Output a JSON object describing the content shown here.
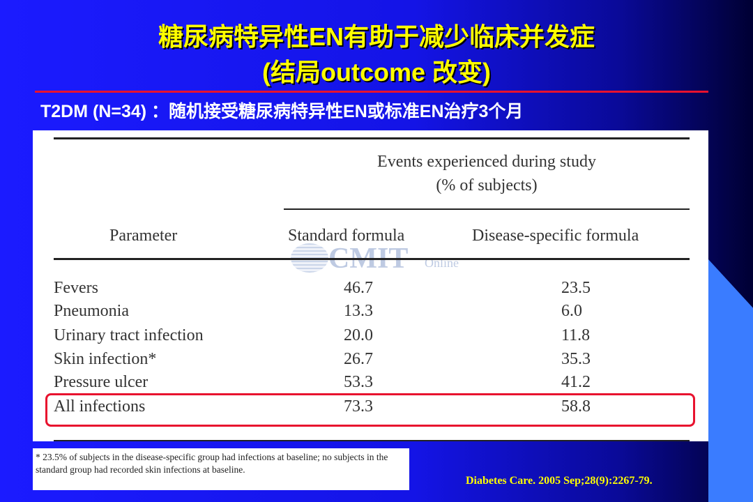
{
  "slide": {
    "title_line1": "糖尿病特异性EN有助于减少临床并发症",
    "title_line2": "(结局outcome 改变)",
    "subtitle": "T2DM (N=34) ：随机接受糖尿病特异性EN或标准EN治疗3个月",
    "citation": "Diabetes Care. 2005 Sep;28(9):2267-79."
  },
  "table": {
    "events_header": "Events experienced during study",
    "events_subheader": "(% of subjects)",
    "columns": [
      "Parameter",
      "Standard formula",
      "Disease-specific formula"
    ],
    "rows": [
      {
        "parameter": "Fevers",
        "standard": "46.7",
        "disease_specific": "23.5"
      },
      {
        "parameter": "Pneumonia",
        "standard": "13.3",
        "disease_specific": "6.0"
      },
      {
        "parameter": "Urinary tract infection",
        "standard": "20.0",
        "disease_specific": "11.8"
      },
      {
        "parameter": "Skin infection*",
        "standard": "26.7",
        "disease_specific": "35.3"
      },
      {
        "parameter": "Pressure ulcer",
        "standard": "53.3",
        "disease_specific": "41.2"
      },
      {
        "parameter": "All infections",
        "standard": "73.3",
        "disease_specific": "58.8"
      }
    ],
    "footnote": "* 23.5% of subjects in the disease-specific group had infections at baseline; no subjects in the standard group had recorded skin infections at baseline."
  },
  "watermark": {
    "brand": "CMIT",
    "suffix": "Online"
  },
  "colors": {
    "title": "#ffff00",
    "rule": "#e8122e",
    "highlight": "#e8122e",
    "background": "#1b1bff"
  }
}
